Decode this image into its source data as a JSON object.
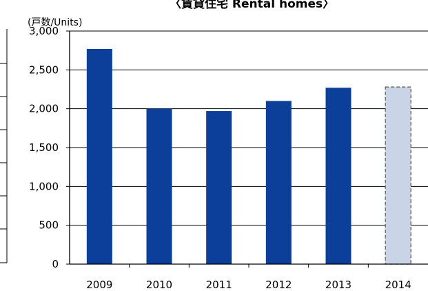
{
  "chart_data": {
    "type": "bar",
    "title": "〈賃貸住宅 Rental homes〉",
    "unit_label": "(戸数/Units)",
    "categories": [
      "2009",
      "2010",
      "2011",
      "2012",
      "2013",
      "2014"
    ],
    "values": [
      2770,
      2000,
      1970,
      2100,
      2270,
      2280
    ],
    "estimated_categories": [
      "2014"
    ],
    "ylim": [
      0,
      3000
    ],
    "yticks": [
      0,
      500,
      1000,
      1500,
      2000,
      2500,
      3000
    ],
    "ytick_labels": [
      "0",
      "500",
      "1,000",
      "1,500",
      "2,000",
      "2,500",
      "3,000"
    ],
    "grid": true,
    "legend": "none",
    "colors": {
      "bar": "#0b3f9a",
      "bar_estimate": "#c9d5e6",
      "estimate_border": "#555555",
      "grid": "#000000"
    }
  }
}
